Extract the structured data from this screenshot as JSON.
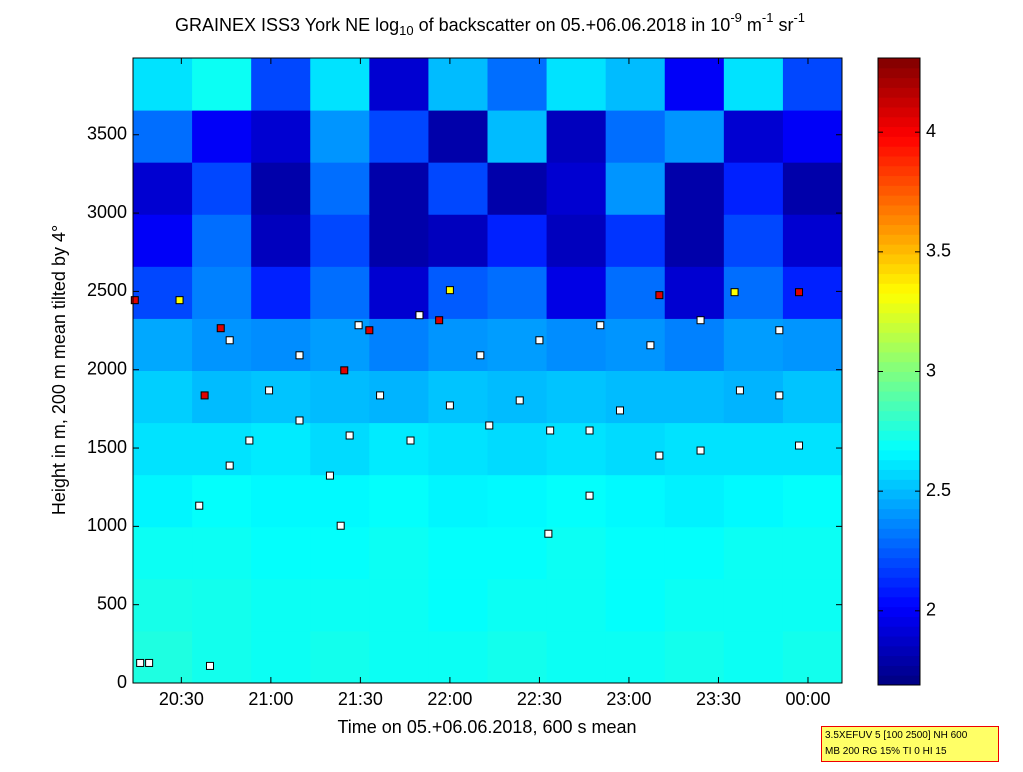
{
  "chart_data": {
    "type": "heatmap",
    "title_parts": [
      "GRAINEX ISS3 York NE log",
      "10",
      " of backscatter on 05.+06.06.2018 in 10",
      "-9",
      " m",
      "-1",
      " sr",
      "-1"
    ],
    "xlabel": "Time on 05.+06.06.2018, 600 s mean",
    "ylabel": "Height in m, 200 m mean tilted by 4°",
    "xlim": [
      20.23,
      24.19
    ],
    "xticks": [
      {
        "value": 20.5,
        "label": "20:30"
      },
      {
        "value": 21,
        "label": "21:00"
      },
      {
        "value": 21.5,
        "label": "21:30"
      },
      {
        "value": 22,
        "label": "22:00"
      },
      {
        "value": 22.5,
        "label": "22:30"
      },
      {
        "value": 23,
        "label": "23:00"
      },
      {
        "value": 23.5,
        "label": "23:30"
      },
      {
        "value": 24,
        "label": "00:00"
      }
    ],
    "ylim": [
      0,
      3990
    ],
    "yticks": [
      0,
      500,
      1000,
      1500,
      2000,
      2500,
      3000,
      3500
    ],
    "clim": [
      1.69,
      4.31
    ],
    "cticks": [
      2,
      2.5,
      3,
      3.5,
      4
    ],
    "colormap": "jet",
    "z": [
      [
        2.75,
        2.72,
        2.7,
        2.72,
        2.7,
        2.7,
        2.72,
        2.7,
        2.7,
        2.72,
        2.7,
        2.72
      ],
      [
        2.73,
        2.72,
        2.7,
        2.7,
        2.7,
        2.68,
        2.7,
        2.7,
        2.68,
        2.7,
        2.7,
        2.7
      ],
      [
        2.7,
        2.7,
        2.68,
        2.68,
        2.7,
        2.68,
        2.68,
        2.7,
        2.68,
        2.68,
        2.7,
        2.7
      ],
      [
        2.65,
        2.68,
        2.66,
        2.66,
        2.68,
        2.65,
        2.66,
        2.68,
        2.66,
        2.64,
        2.66,
        2.68
      ],
      [
        2.6,
        2.6,
        2.62,
        2.58,
        2.62,
        2.6,
        2.58,
        2.6,
        2.58,
        2.6,
        2.6,
        2.6
      ],
      [
        2.55,
        2.5,
        2.52,
        2.5,
        2.48,
        2.52,
        2.5,
        2.52,
        2.5,
        2.5,
        2.48,
        2.52
      ],
      [
        2.45,
        2.4,
        2.38,
        2.42,
        2.35,
        2.4,
        2.42,
        2.38,
        2.4,
        2.35,
        2.42,
        2.4
      ],
      [
        2.2,
        2.35,
        2.1,
        2.3,
        1.9,
        2.25,
        2.3,
        1.95,
        2.3,
        1.9,
        2.3,
        2.1
      ],
      [
        2.0,
        2.3,
        1.85,
        2.2,
        1.8,
        1.85,
        2.1,
        1.85,
        2.15,
        1.8,
        2.2,
        1.9
      ],
      [
        1.9,
        2.2,
        1.8,
        2.3,
        1.8,
        2.2,
        1.8,
        1.9,
        2.4,
        1.8,
        2.1,
        1.8
      ],
      [
        2.3,
        2.0,
        1.9,
        2.4,
        2.2,
        1.8,
        2.5,
        1.85,
        2.3,
        2.4,
        1.9,
        2.0
      ],
      [
        2.6,
        2.7,
        2.2,
        2.6,
        1.9,
        2.5,
        2.3,
        2.6,
        2.5,
        2.0,
        2.6,
        2.2
      ]
    ],
    "series": [
      {
        "color": "#ffffff",
        "x": [
          20.27,
          20.32,
          20.6,
          20.77,
          20.88,
          20.99,
          21.16,
          21.33,
          21.44,
          21.61,
          21.78,
          22.0,
          22.22,
          22.39,
          22.56,
          22.78,
          22.95,
          23.17,
          23.4,
          23.62,
          23.84,
          23.95,
          20.77,
          21.16,
          21.49,
          21.83,
          22.17,
          22.5,
          22.84,
          23.12,
          23.4,
          23.84,
          21.39,
          22.55,
          22.78,
          20.66
        ],
        "y": [
          128,
          128,
          1132,
          1388,
          1548,
          1868,
          1676,
          1324,
          1580,
          1836,
          1548,
          1772,
          1644,
          1804,
          1612,
          1612,
          1740,
          1452,
          1484,
          1868,
          1836,
          1516,
          2188,
          2092,
          2284,
          2348,
          2092,
          2188,
          2284,
          2156,
          2316,
          2252,
          1004,
          953,
          1196,
          109
        ]
      },
      {
        "color": "#e00000",
        "x": [
          20.24,
          20.72,
          21.55,
          21.94,
          23.17,
          23.95,
          20.63,
          21.41
        ],
        "y": [
          2444,
          2265,
          2252,
          2316,
          2476,
          2495,
          1836,
          1996
        ]
      },
      {
        "color": "#ffff00",
        "x": [
          20.49,
          22.0,
          23.59
        ],
        "y": [
          2444,
          2508,
          2495
        ]
      }
    ],
    "annotation_lines": [
      "3.5XEFUV 5 [100 2500] NH 600",
      "MB 200 RG 15% TI 0 HI 15"
    ]
  }
}
